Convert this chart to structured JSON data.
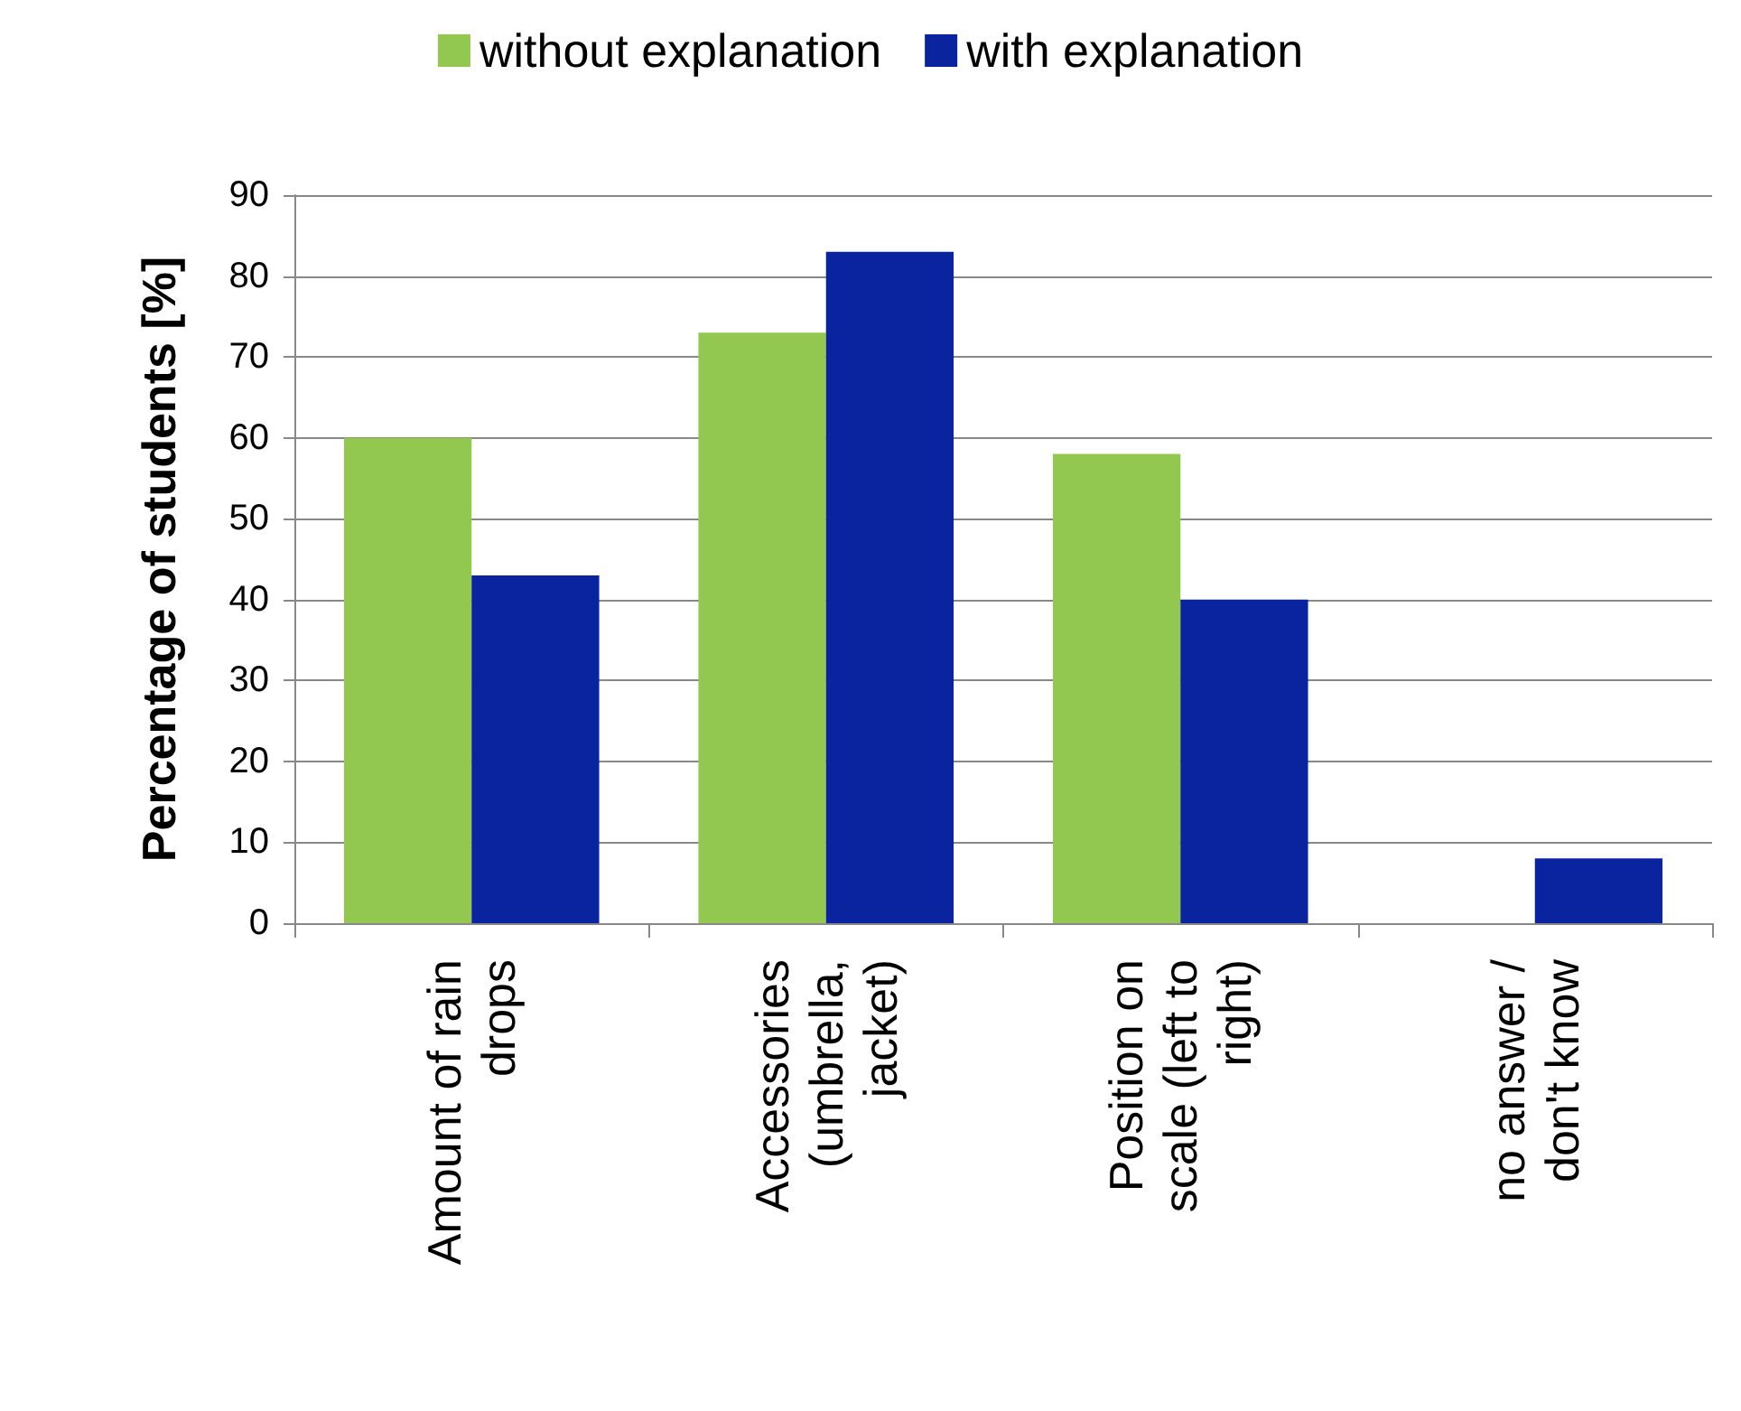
{
  "chart_data": {
    "type": "bar",
    "ylabel": "Percentage of students [%]",
    "categories": [
      "Amount of rain\ndrops",
      "Accessories\n(umbrella,\njacket)",
      "Position on\nscale (left to\nright)",
      "no answer /\ndon't know"
    ],
    "series": [
      {
        "name": "without explanation",
        "color": "#92c84f",
        "values": [
          60,
          73,
          58,
          0
        ]
      },
      {
        "name": "with explanation",
        "color": "#0a24a0",
        "values": [
          43,
          83,
          40,
          8
        ]
      }
    ],
    "ylim": [
      0,
      90
    ],
    "yticks": [
      0,
      10,
      20,
      30,
      40,
      50,
      60,
      70,
      80,
      90
    ],
    "grid": "y",
    "legend": "top"
  }
}
